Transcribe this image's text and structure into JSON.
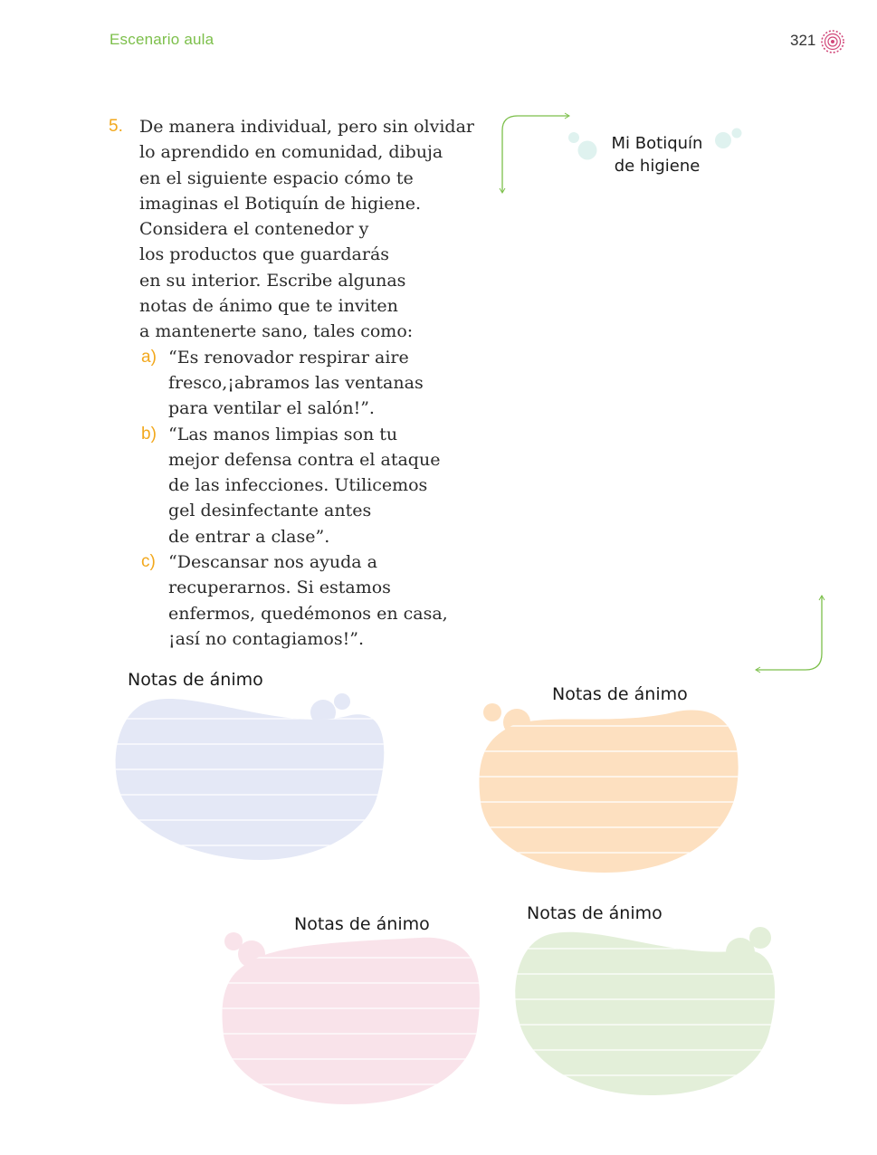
{
  "header": {
    "section": "Escenario aula",
    "page": "321"
  },
  "activity": {
    "number": "5.",
    "lines": [
      "De manera individual, pero sin olvidar",
      "lo aprendido en comunidad, dibuja",
      "en el siguiente espacio cómo te",
      "imaginas el Botiquín de higiene.",
      "Considera el contenedor y",
      "los productos que guardarás",
      "en su interior. Escribe algunas",
      "notas de ánimo que te inviten",
      "a mantenerte sano, tales como:"
    ],
    "items": [
      {
        "letter": "a)",
        "lines": [
          "“Es renovador respirar aire",
          "fresco,¡abramos las ventanas",
          "para ventilar el salón!”."
        ]
      },
      {
        "letter": "b)",
        "lines": [
          "“Las manos limpias son tu",
          "mejor defensa contra el ataque",
          "de las infecciones. Utilicemos",
          "gel desinfectante antes",
          "de entrar a clase”."
        ]
      },
      {
        "letter": "c)",
        "lines": [
          "“Descansar nos ayuda a",
          "recuperarnos. Si estamos",
          "enfermos, quedémonos en casa,",
          "¡así no contagiamos!”."
        ]
      }
    ]
  },
  "drawing_area": {
    "title_line1": "Mi Botiquín",
    "title_line2": "de higiene"
  },
  "notes": [
    {
      "label": "Notas de ánimo",
      "color": "#e4e8f6"
    },
    {
      "label": "Notas de ánimo",
      "color": "#fde0c0"
    },
    {
      "label": "Notas de ánimo",
      "color": "#f9e3ea"
    },
    {
      "label": "Notas de ánimo",
      "color": "#e3efd9"
    }
  ],
  "colors": {
    "accent_green": "#7cbf4a",
    "accent_orange": "#f2a81d",
    "deco_pink": "#d1487a",
    "bubble_teal": "#dff2ef"
  }
}
